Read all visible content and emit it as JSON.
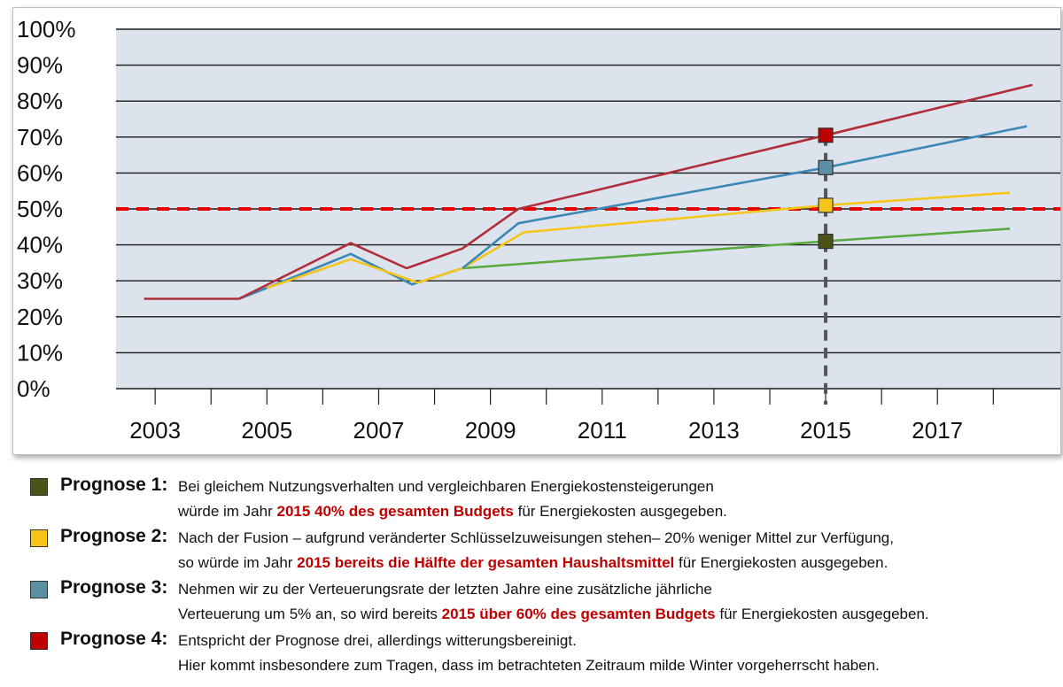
{
  "chart_data": {
    "type": "line",
    "y_ticks": [
      "100%",
      "90%",
      "80%",
      "70%",
      "60%",
      "50%",
      "40%",
      "30%",
      "20%",
      "10%",
      "0%"
    ],
    "x_ticks": [
      "2003",
      "2005",
      "2007",
      "2009",
      "2011",
      "2013",
      "2015",
      "2017"
    ],
    "ylim": [
      0,
      100
    ],
    "xlim": [
      2002.3,
      2019.2
    ],
    "grid": true,
    "colors": {
      "plot_bg": "#dde3ec",
      "grid": "#1a1a1a",
      "threshold": "#e60000",
      "marker_line": "#555555"
    },
    "threshold_y": 50,
    "marker_x": 2015,
    "series": [
      {
        "color": "#5aab3f",
        "marker_color": "#4b5216",
        "points": [
          [
            2008.5,
            33.5
          ],
          [
            2015,
            41
          ],
          [
            2018.3,
            44.5
          ]
        ]
      },
      {
        "color": "#f5c518",
        "marker_color": "#f5c518",
        "points": [
          [
            2008.5,
            33.5
          ],
          [
            2009.6,
            43.5
          ],
          [
            2015,
            51
          ],
          [
            2018.3,
            54.5
          ]
        ]
      },
      {
        "color": "#3a88b5",
        "marker_color": "#5b8fa3",
        "points": [
          [
            2004.5,
            25
          ],
          [
            2005,
            28
          ],
          [
            2006.5,
            37.5
          ],
          [
            2007.6,
            29
          ],
          [
            2008.5,
            33.5
          ],
          [
            2009.5,
            46
          ],
          [
            2015,
            61.5
          ],
          [
            2018.6,
            73
          ]
        ]
      },
      {
        "color": "#b02e3a",
        "marker_color": "#c00000",
        "points": [
          [
            2002.8,
            25
          ],
          [
            2004.5,
            25
          ],
          [
            2006.5,
            40.5
          ],
          [
            2007.5,
            33.5
          ],
          [
            2008.5,
            39
          ],
          [
            2009.5,
            50
          ],
          [
            2015,
            70.5
          ],
          [
            2018.7,
            84.5
          ]
        ]
      },
      {
        "color": "#f5c518",
        "marker_color": "#f5c518",
        "points": [
          [
            2005,
            28
          ],
          [
            2006.5,
            36
          ],
          [
            2007.7,
            29.5
          ],
          [
            2008.5,
            33.5
          ]
        ]
      }
    ]
  },
  "legend": [
    {
      "name": "Prognose 1:",
      "color": "#4b5216",
      "line1": "Bei gleichem Nutzungsverhalten und vergleichbaren Energiekostensteigerungen",
      "line2_pre": "würde im Jahr ",
      "line2_hl": "2015 40% des gesamten Budgets",
      "line2_post": " für Energiekosten ausgegeben."
    },
    {
      "name": "Prognose 2:",
      "color": "#f5c518",
      "line1": "Nach der Fusion – aufgrund veränderter Schlüsselzuweisungen  stehen– 20% weniger Mittel zur Verfügung,",
      "line2_pre": "so würde im Jahr ",
      "line2_hl": "2015 bereits die Hälfte der gesamten Haushaltsmittel",
      "line2_post": " für Energiekosten ausgegeben."
    },
    {
      "name": "Prognose 3:",
      "color": "#5b8fa3",
      "line1": "Nehmen wir zu der Verteuerungsrate der letzten Jahre eine zusätzliche jährliche",
      "line2_pre": "Verteuerung um 5% an, so wird bereits  ",
      "line2_hl": "2015 über 60% des gesamten Budgets",
      "line2_post": " für Energiekosten ausgegeben."
    },
    {
      "name": "Prognose 4:",
      "color": "#c00000",
      "line1": "Entspricht der Prognose drei, allerdings witterungsbereinigt.",
      "line2_pre": "Hier kommt insbesondere zum Tragen, dass im betrachteten Zeitraum milde Winter vorgeherrscht haben.",
      "line2_hl": "",
      "line2_post": ""
    }
  ]
}
